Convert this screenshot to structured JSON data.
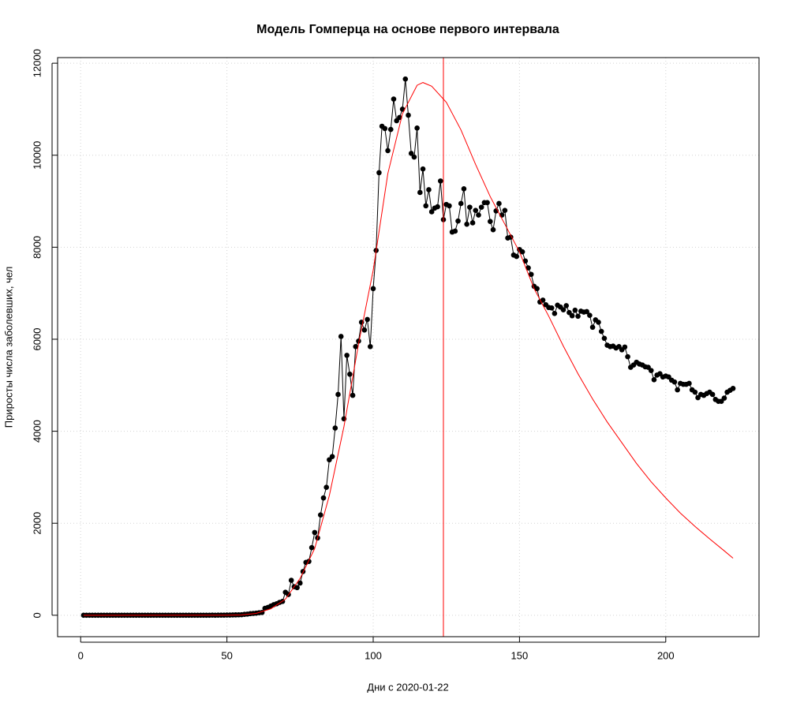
{
  "chart_data": {
    "type": "line",
    "title": "Модель Гомперца на основе первого интервала",
    "xlabel": "Дни с 2020-01-22",
    "ylabel": "Приросты числа заболевших, чел",
    "xlim": [
      -7.88,
      231.88
    ],
    "ylim": [
      -466,
      12122
    ],
    "xticks": [
      0,
      50,
      100,
      150,
      200
    ],
    "yticks": [
      0,
      2000,
      4000,
      6000,
      8000,
      10000,
      12000
    ],
    "grid": true,
    "vline": {
      "x": 124,
      "color": "#ff0000"
    },
    "series": [
      {
        "color": "#000000",
        "markers": true,
        "x": [
          1,
          2,
          3,
          4,
          5,
          6,
          7,
          8,
          9,
          10,
          11,
          12,
          13,
          14,
          15,
          16,
          17,
          18,
          19,
          20,
          21,
          22,
          23,
          24,
          25,
          26,
          27,
          28,
          29,
          30,
          31,
          32,
          33,
          34,
          35,
          36,
          37,
          38,
          39,
          40,
          41,
          42,
          43,
          44,
          45,
          46,
          47,
          48,
          49,
          50,
          51,
          52,
          53,
          54,
          55,
          56,
          57,
          58,
          59,
          60,
          61,
          62,
          63,
          64,
          65,
          66,
          67,
          68,
          69,
          70,
          71,
          72,
          73,
          74,
          75,
          76,
          77,
          78,
          79,
          80,
          81,
          82,
          83,
          84,
          85,
          86,
          87,
          88,
          89,
          90,
          91,
          92,
          93,
          94,
          95,
          96,
          97,
          98,
          99,
          100,
          101,
          102,
          103,
          104,
          105,
          106,
          107,
          108,
          109,
          110,
          111,
          112,
          113,
          114,
          115,
          116,
          117,
          118,
          119,
          120,
          121,
          122,
          123,
          124,
          125,
          126,
          127,
          128,
          129,
          130,
          131,
          132,
          133,
          134,
          135,
          136,
          137,
          138,
          139,
          140,
          141,
          142,
          143,
          144,
          145,
          146,
          147,
          148,
          149,
          150,
          151,
          152,
          153,
          154,
          155,
          156,
          157,
          158,
          159,
          160,
          161,
          162,
          163,
          164,
          165,
          166,
          167,
          168,
          169,
          170,
          171,
          172,
          173,
          174,
          175,
          176,
          177,
          178,
          179,
          180,
          181,
          182,
          183,
          184,
          185,
          186,
          187,
          188,
          189,
          190,
          191,
          192,
          193,
          194,
          195,
          196,
          197,
          198,
          199,
          200,
          201,
          202,
          203,
          204,
          205,
          206,
          207,
          208,
          209,
          210,
          211,
          212,
          213,
          214,
          215,
          216,
          217,
          218,
          219,
          220,
          221,
          222,
          223
        ],
        "values": [
          0,
          0,
          0,
          0,
          0,
          0,
          0,
          0,
          0,
          0,
          0,
          0,
          0,
          0,
          0,
          0,
          0,
          0,
          0,
          0,
          0,
          0,
          0,
          0,
          0,
          0,
          0,
          0,
          0,
          0,
          0,
          0,
          0,
          0,
          0,
          0,
          0,
          0,
          0,
          0,
          0,
          1,
          0,
          1,
          2,
          1,
          2,
          3,
          3,
          4,
          5,
          6,
          8,
          10,
          12,
          20,
          25,
          35,
          40,
          45,
          55,
          60,
          150,
          170,
          200,
          230,
          250,
          280,
          300,
          500,
          450,
          760,
          620,
          600,
          700,
          950,
          1150,
          1170,
          1470,
          1800,
          1680,
          2180,
          2550,
          2780,
          3380,
          3450,
          4070,
          4800,
          6060,
          4270,
          5650,
          5240,
          4780,
          5840,
          5960,
          6370,
          6200,
          6430,
          5840,
          7100,
          7930,
          9620,
          10630,
          10580,
          10100,
          10560,
          11220,
          10750,
          10820,
          11000,
          11656,
          10870,
          10040,
          9960,
          10590,
          9190,
          9700,
          8900,
          9250,
          8770,
          8850,
          8880,
          9440,
          8600,
          8930,
          8900,
          8330,
          8350,
          8570,
          8950,
          9270,
          8500,
          8870,
          8530,
          8800,
          8700,
          8870,
          8970,
          8970,
          8560,
          8380,
          8790,
          8950,
          8700,
          8800,
          8200,
          8220,
          7830,
          7800,
          7950,
          7900,
          7700,
          7550,
          7410,
          7150,
          7100,
          6810,
          6850,
          6750,
          6690,
          6680,
          6560,
          6740,
          6700,
          6640,
          6730,
          6580,
          6510,
          6630,
          6500,
          6610,
          6590,
          6600,
          6520,
          6260,
          6420,
          6370,
          6170,
          6020,
          5870,
          5840,
          5850,
          5810,
          5840,
          5770,
          5830,
          5620,
          5390,
          5440,
          5500,
          5460,
          5440,
          5400,
          5390,
          5320,
          5120,
          5220,
          5250,
          5180,
          5200,
          5180,
          5110,
          5070,
          4900,
          5040,
          5020,
          5020,
          5040,
          4900,
          4850,
          4730,
          4800,
          4780,
          4820,
          4850,
          4800,
          4690,
          4650,
          4650,
          4720,
          4850,
          4890,
          4930
        ]
      },
      {
        "color": "#ff0000",
        "markers": false,
        "x": [
          1,
          50,
          55,
          60,
          65,
          70,
          75,
          80,
          85,
          90,
          95,
          100,
          105,
          110,
          115,
          117,
          120,
          125,
          130,
          135,
          140,
          145,
          150,
          155,
          160,
          165,
          170,
          175,
          180,
          185,
          190,
          195,
          200,
          205,
          210,
          215,
          220,
          223
        ],
        "values": [
          0,
          2,
          8,
          40,
          140,
          350,
          800,
          1450,
          2600,
          4100,
          5900,
          7500,
          9600,
          10900,
          11520,
          11580,
          11500,
          11150,
          10550,
          9800,
          9100,
          8500,
          7900,
          7100,
          6500,
          5850,
          5250,
          4700,
          4200,
          3750,
          3300,
          2900,
          2550,
          2220,
          1930,
          1660,
          1400,
          1240
        ]
      }
    ]
  }
}
